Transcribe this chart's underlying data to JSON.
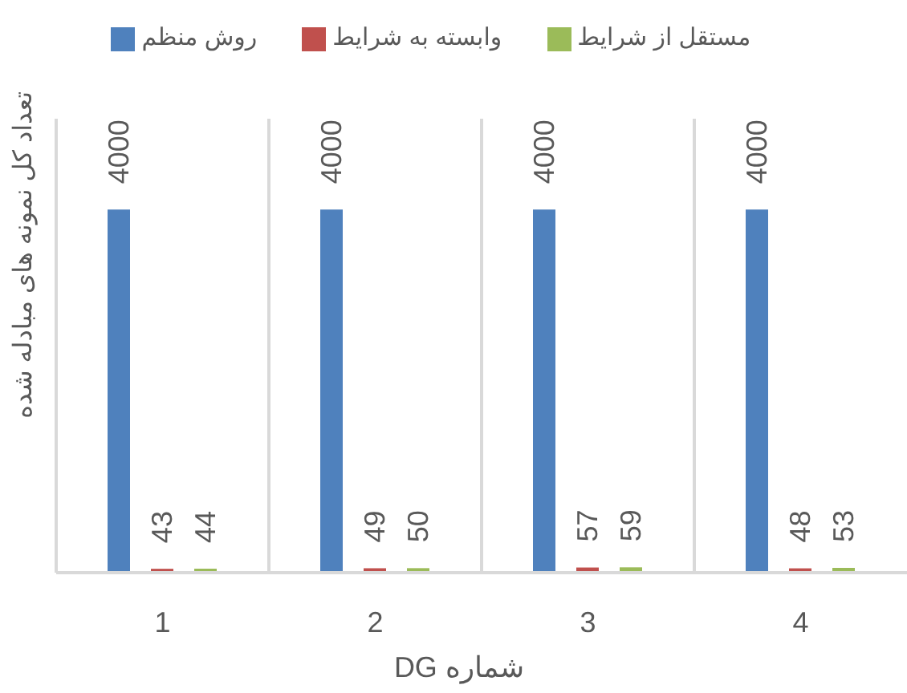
{
  "chart_data": {
    "type": "bar",
    "xlabel": "شماره DG",
    "ylabel": "تعداد کل نمونه های مبادله شده",
    "categories": [
      "1",
      "2",
      "3",
      "4"
    ],
    "series": [
      {
        "name": "روش منظم",
        "color": "#4f81bd",
        "values": [
          4000,
          4000,
          4000,
          4000
        ]
      },
      {
        "name": "وابسته به شرایط",
        "color": "#c0504d",
        "values": [
          43,
          49,
          57,
          48
        ]
      },
      {
        "name": "مستقل از شرایط",
        "color": "#9bbb59",
        "values": [
          44,
          50,
          59,
          53
        ]
      }
    ],
    "data_labels": true,
    "grid": "x",
    "legend": "top",
    "tick_labels": "x"
  }
}
